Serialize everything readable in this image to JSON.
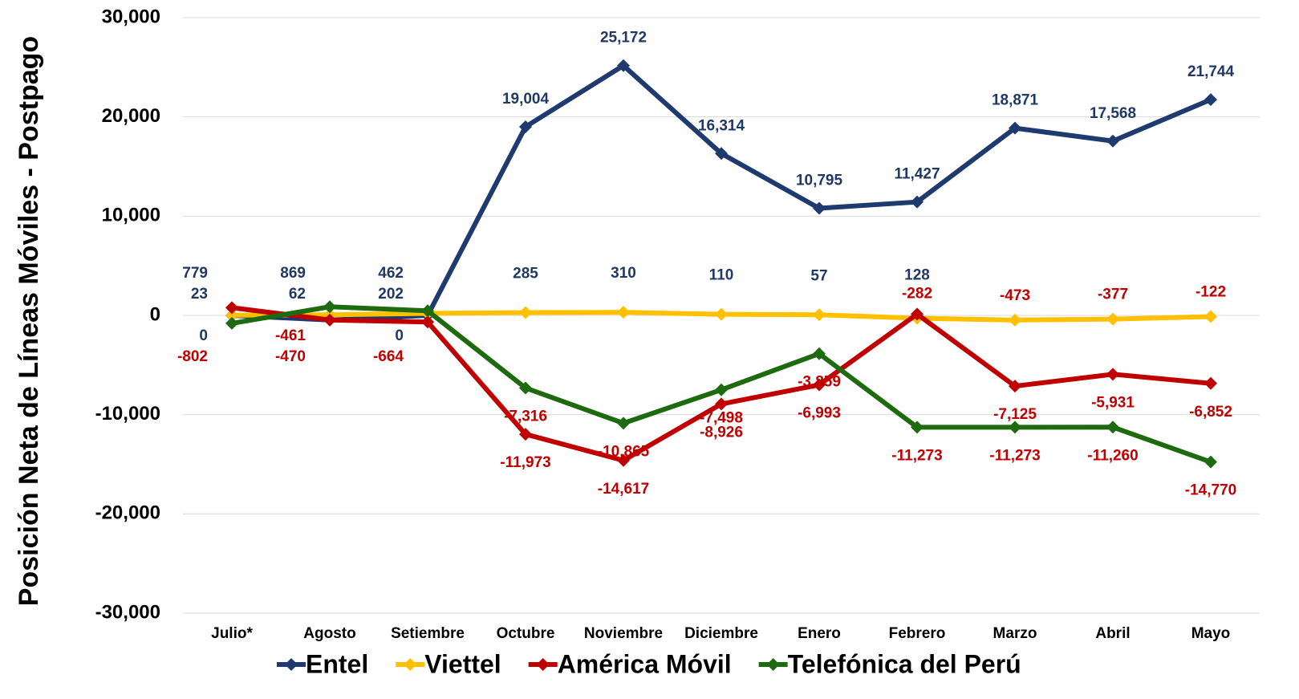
{
  "chart_data": {
    "type": "line",
    "y_label": "Posición Neta de Líneas Móviles - Postpago",
    "categories": [
      "Julio*",
      "Agosto",
      "Setiembre",
      "Octubre",
      "Noviembre",
      "Diciembre",
      "Enero",
      "Febrero",
      "Marzo",
      "Abril",
      "Mayo"
    ],
    "series": [
      {
        "name": "Entel",
        "color": "#1f3a6e",
        "values": [
          0,
          -470,
          0,
          19004,
          25172,
          16314,
          10795,
          11427,
          18871,
          17568,
          21744
        ],
        "value_labels": [
          "0",
          "-470",
          "0",
          "19,004",
          "25,172",
          "16,314",
          "10,795",
          "11,427",
          "18,871",
          "17,568",
          "21,744"
        ]
      },
      {
        "name": "Viettel",
        "color": "#ffc000",
        "values": [
          23,
          62,
          202,
          285,
          310,
          110,
          57,
          -282,
          -473,
          -377,
          -122
        ],
        "value_labels": [
          "23",
          "62",
          "202",
          "285",
          "310",
          "110",
          "57",
          "-282",
          "-473",
          "-377",
          "-122"
        ]
      },
      {
        "name": "América Móvil",
        "color": "#c00000",
        "values": [
          779,
          -461,
          -664,
          -11973,
          -14617,
          -8926,
          -6993,
          128,
          -7125,
          -5931,
          -6852
        ],
        "value_labels": [
          "779",
          "-461",
          "-664",
          "-11,973",
          "-14,617",
          "-8,926",
          "-6,993",
          "128",
          "-7,125",
          "-5,931",
          "-6,852"
        ]
      },
      {
        "name": "Telefónica del Perú",
        "color": "#1e6b0f",
        "values": [
          -802,
          869,
          462,
          -7316,
          -10865,
          -7498,
          -3859,
          -11273,
          -11273,
          -11260,
          -14770
        ],
        "value_labels": [
          "-802",
          "869",
          "462",
          "-7,316",
          "-10,865",
          "-7,498",
          "-3,859",
          "-11,273",
          "-11,273",
          "-11,260",
          "-14,770"
        ]
      }
    ],
    "ylim": [
      -30000,
      30000
    ],
    "yticks": [
      {
        "value": -30000,
        "label": "-30,000"
      },
      {
        "value": -20000,
        "label": "-20,000"
      },
      {
        "value": -10000,
        "label": "-10,000"
      },
      0,
      {
        "value": 10000,
        "label": "10,000"
      },
      {
        "value": 20000,
        "label": "20,000"
      },
      {
        "value": 30000,
        "label": "30,000"
      }
    ],
    "grid": true,
    "legend": "bottom",
    "positive_label_color": "#1f3864",
    "negative_label_color": "#c00000"
  }
}
